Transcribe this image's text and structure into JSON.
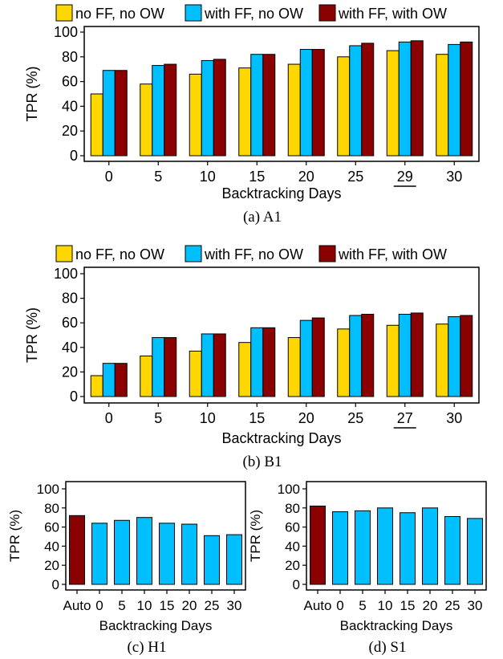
{
  "legend": [
    {
      "label": "no FF, no OW",
      "color": "#FFD700"
    },
    {
      "label": "with FF, no OW",
      "color": "#00BFFF"
    },
    {
      "label": "with FF, with OW",
      "color": "#8B0000"
    }
  ],
  "chart_data": [
    {
      "type": "bar",
      "caption": "(a)  A1",
      "xlabel": "Backtracking Days",
      "ylabel": "TPR (%)",
      "ylim": [
        0,
        100
      ],
      "yticks": [
        0,
        20,
        40,
        60,
        80,
        100
      ],
      "categories": [
        "0",
        "5",
        "10",
        "15",
        "20",
        "25",
        "29",
        "30"
      ],
      "underlined_category": "29",
      "series": [
        {
          "name": "no FF, no OW",
          "color": "#FFD700",
          "values": [
            50,
            58,
            66,
            71,
            74,
            80,
            85,
            82
          ]
        },
        {
          "name": "with FF, no OW",
          "color": "#00BFFF",
          "values": [
            69,
            73,
            77,
            82,
            86,
            89,
            92,
            90
          ]
        },
        {
          "name": "with FF, with OW",
          "color": "#8B0000",
          "values": [
            69,
            74,
            78,
            82,
            86,
            91,
            93,
            92
          ]
        }
      ]
    },
    {
      "type": "bar",
      "caption": "(b)  B1",
      "xlabel": "Backtracking Days",
      "ylabel": "TPR (%)",
      "ylim": [
        0,
        100
      ],
      "yticks": [
        0,
        20,
        40,
        60,
        80,
        100
      ],
      "categories": [
        "0",
        "5",
        "10",
        "15",
        "20",
        "25",
        "27",
        "30"
      ],
      "underlined_category": "27",
      "series": [
        {
          "name": "no FF, no OW",
          "color": "#FFD700",
          "values": [
            17,
            33,
            37,
            44,
            48,
            55,
            58,
            59
          ]
        },
        {
          "name": "with FF, no OW",
          "color": "#00BFFF",
          "values": [
            27,
            48,
            51,
            56,
            62,
            66,
            67,
            65
          ]
        },
        {
          "name": "with FF, with OW",
          "color": "#8B0000",
          "values": [
            27,
            48,
            51,
            56,
            64,
            67,
            68,
            66
          ]
        }
      ]
    },
    {
      "type": "bar",
      "caption": "(c)  H1",
      "xlabel": "Backtracking Days",
      "ylabel": "TPR (%)",
      "ylim": [
        0,
        100
      ],
      "yticks": [
        0,
        20,
        40,
        60,
        80,
        100
      ],
      "categories": [
        "Auto",
        "0",
        "5",
        "10",
        "15",
        "20",
        "25",
        "30"
      ],
      "values": [
        72,
        64,
        67,
        70,
        64,
        63,
        51,
        52
      ],
      "colors": [
        "#8B0000",
        "#00BFFF",
        "#00BFFF",
        "#00BFFF",
        "#00BFFF",
        "#00BFFF",
        "#00BFFF",
        "#00BFFF"
      ]
    },
    {
      "type": "bar",
      "caption": "(d)  S1",
      "xlabel": "Backtracking Days",
      "ylabel": "TPR (%)",
      "ylim": [
        0,
        100
      ],
      "yticks": [
        0,
        20,
        40,
        60,
        80,
        100
      ],
      "categories": [
        "Auto",
        "0",
        "5",
        "10",
        "15",
        "20",
        "25",
        "30"
      ],
      "values": [
        82,
        76,
        77,
        80,
        75,
        80,
        71,
        69
      ],
      "colors": [
        "#8B0000",
        "#00BFFF",
        "#00BFFF",
        "#00BFFF",
        "#00BFFF",
        "#00BFFF",
        "#00BFFF",
        "#00BFFF"
      ]
    }
  ]
}
